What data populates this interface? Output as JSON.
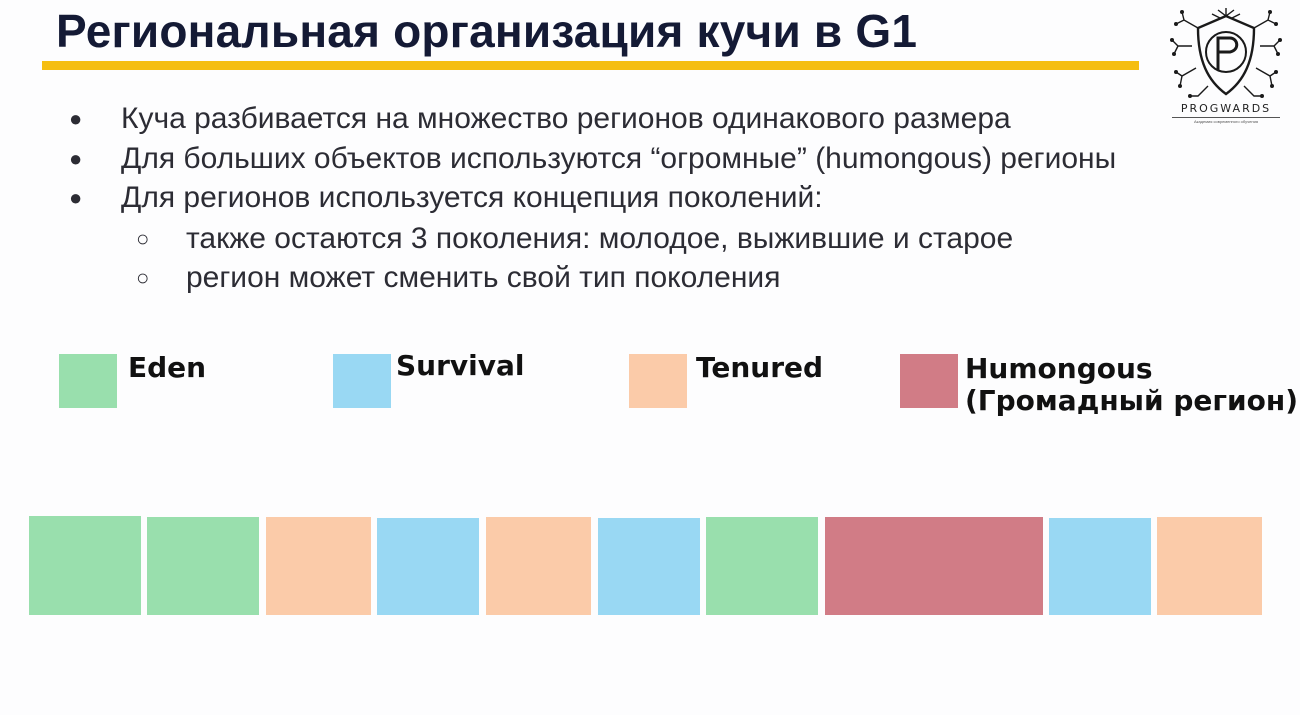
{
  "title": "Региональная организация кучи в G1",
  "logo": {
    "text": "PROGWARDS",
    "subtext": "Академия современного обучения"
  },
  "bullets": [
    "Куча разбивается на множество регионов одинакового размера",
    "Для больших объектов используются “огромные” (humongous) регионы",
    "Для регионов используется концепция поколений:"
  ],
  "sub_bullets": [
    "также остаются 3 поколения: молодое, выжившие и старое",
    "регион может сменить свой тип поколения"
  ],
  "legend": [
    {
      "type": "eden",
      "label": "Eden"
    },
    {
      "type": "survival",
      "label": "Survival"
    },
    {
      "type": "tenured",
      "label": "Tenured"
    },
    {
      "type": "humongous",
      "label": "Humongous (Громадный регион)"
    }
  ],
  "regions": [
    "eden",
    "eden",
    "tenured",
    "survival",
    "tenured",
    "survival",
    "eden",
    "humongous",
    "survival",
    "tenured"
  ],
  "colors": {
    "eden": "#99dfad",
    "survival": "#99d8f3",
    "tenured": "#fbcba9",
    "humongous": "#d17c86",
    "title_underline": "#f5be12"
  }
}
